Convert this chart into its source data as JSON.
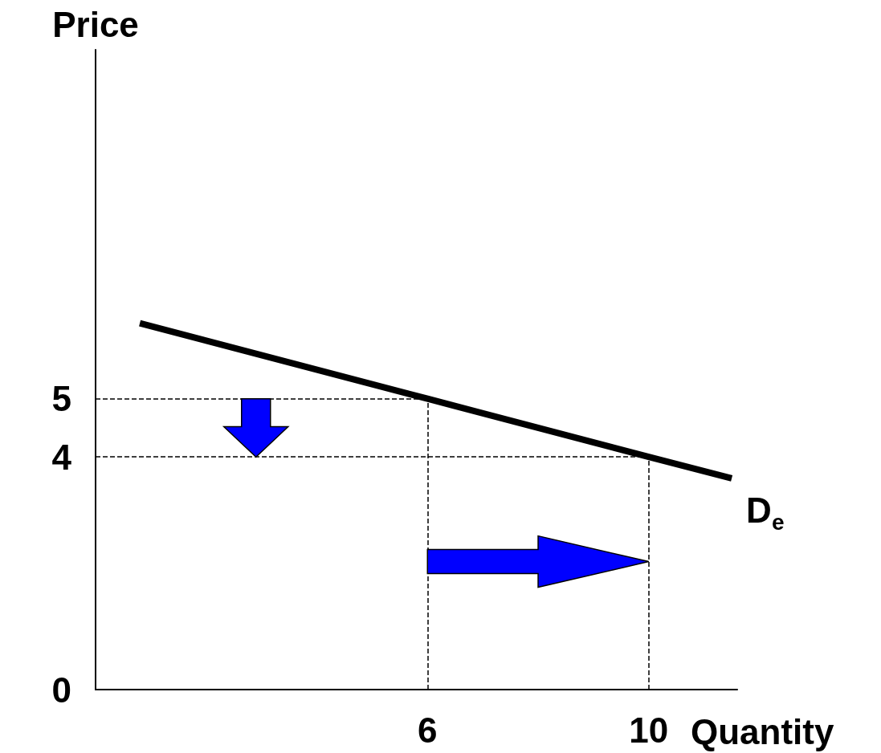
{
  "chart_data": {
    "type": "line",
    "xlabel": "Quantity",
    "ylabel": "Price",
    "x": [
      0.8,
      6,
      10,
      11.5
    ],
    "series": [
      {
        "name": "D$_{e}$",
        "color": "#000000",
        "values": [
          6.3,
          5,
          4,
          3.63
        ]
      }
    ],
    "xlim": [
      0,
      11.6
    ],
    "ylim": [
      0,
      11
    ],
    "xticks": [
      6,
      10
    ],
    "yticks": [
      0,
      4,
      5
    ],
    "ref_lines": [
      {
        "axis": "y",
        "value": 5,
        "color": "#000000",
        "line_style": "dashed"
      },
      {
        "axis": "y",
        "value": 4,
        "color": "#000000",
        "line_style": "dashed"
      },
      {
        "axis": "x",
        "value": 6,
        "color": "#000000",
        "line_style": "dashed"
      },
      {
        "axis": "x",
        "value": 10,
        "color": "#000000",
        "line_style": "dashed"
      }
    ],
    "grid": false,
    "legend": false,
    "marker": "none",
    "line_style": "solid"
  }
}
